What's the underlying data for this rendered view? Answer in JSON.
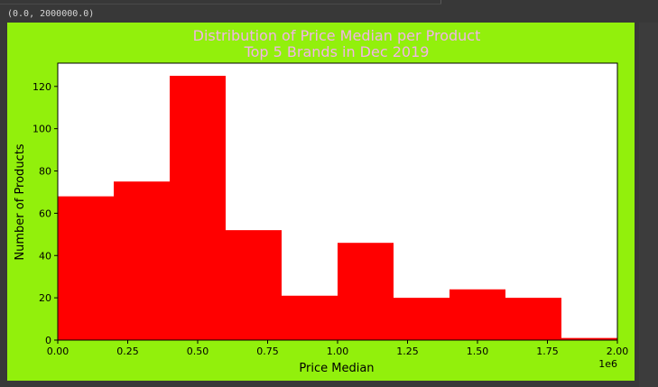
{
  "output_text": "(0.0, 2000000.0)",
  "colors": {
    "figure_bg": "#92f00c",
    "bar": "#ff0000",
    "title": "#f3b3e8",
    "axes_bg": "#ffffff"
  },
  "chart_data": {
    "type": "bar",
    "title": "Distribution of Price Median per Product",
    "subtitle": "Top 5 Brands in Dec 2019",
    "xlabel": "Price Median",
    "ylabel": "Number of Products",
    "x_offset_label": "1e6",
    "xlim": [
      0,
      2.0
    ],
    "ylim": [
      0,
      131
    ],
    "x_ticks": [
      "0.00",
      "0.25",
      "0.50",
      "0.75",
      "1.00",
      "1.25",
      "1.50",
      "1.75",
      "2.00"
    ],
    "y_ticks": [
      "0",
      "20",
      "40",
      "60",
      "80",
      "100",
      "120"
    ],
    "bin_edges": [
      0.0,
      0.2,
      0.4,
      0.6,
      0.8,
      1.0,
      1.2,
      1.4,
      1.6,
      1.8,
      2.0
    ],
    "values": [
      68,
      75,
      125,
      52,
      21,
      46,
      20,
      24,
      20,
      1
    ],
    "grid": false
  }
}
